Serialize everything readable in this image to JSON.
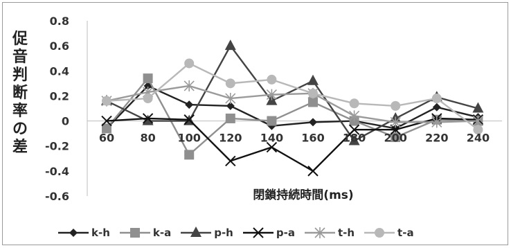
{
  "chart_data": {
    "type": "line",
    "title": "",
    "xlabel": "閉鎖持続時間(ms)",
    "ylabel": "促音判断率の差",
    "x": [
      60,
      80,
      100,
      120,
      140,
      160,
      180,
      200,
      220,
      240
    ],
    "ylim": [
      -0.6,
      0.8
    ],
    "yticks": [
      0.8,
      0.6,
      0.4,
      0.2,
      0,
      -0.2,
      -0.4,
      -0.6
    ],
    "ytick_labels": [
      "0.8",
      "0.6",
      "0.4",
      "0.2",
      "0",
      "-0.2",
      "-0.4",
      "-0.6"
    ],
    "xtick_labels": [
      "60",
      "80",
      "100",
      "120",
      "140",
      "160",
      "180",
      "200",
      "220",
      "240"
    ],
    "grid": false,
    "legend_position": "bottom",
    "series": [
      {
        "name": "k-h",
        "color": "#222222",
        "marker": "diamond",
        "values": [
          -0.06,
          0.28,
          0.13,
          0.12,
          -0.04,
          -0.01,
          0.0,
          -0.06,
          0.11,
          0.03
        ]
      },
      {
        "name": "k-a",
        "color": "#8f8f8f",
        "marker": "square",
        "values": [
          -0.06,
          0.34,
          -0.27,
          0.02,
          0.0,
          0.15,
          0.0,
          -0.13,
          0.01,
          0.0
        ]
      },
      {
        "name": "p-h",
        "color": "#444444",
        "marker": "triangle",
        "values": [
          0.16,
          0.0,
          0.0,
          0.6,
          0.16,
          0.32,
          -0.16,
          0.02,
          0.19,
          0.1
        ]
      },
      {
        "name": "p-a",
        "color": "#111111",
        "marker": "x",
        "values": [
          0.0,
          0.02,
          0.01,
          -0.32,
          -0.21,
          -0.4,
          -0.07,
          -0.07,
          0.02,
          0.01
        ]
      },
      {
        "name": "t-h",
        "color": "#9a9a9a",
        "marker": "asterisk",
        "values": [
          0.16,
          0.23,
          0.28,
          0.18,
          0.21,
          0.22,
          0.04,
          -0.01,
          -0.01,
          0.0
        ]
      },
      {
        "name": "t-a",
        "color": "#b8b8b8",
        "marker": "circle",
        "values": [
          0.16,
          0.18,
          0.46,
          0.3,
          0.33,
          0.22,
          0.14,
          0.12,
          0.18,
          -0.07
        ]
      }
    ]
  }
}
